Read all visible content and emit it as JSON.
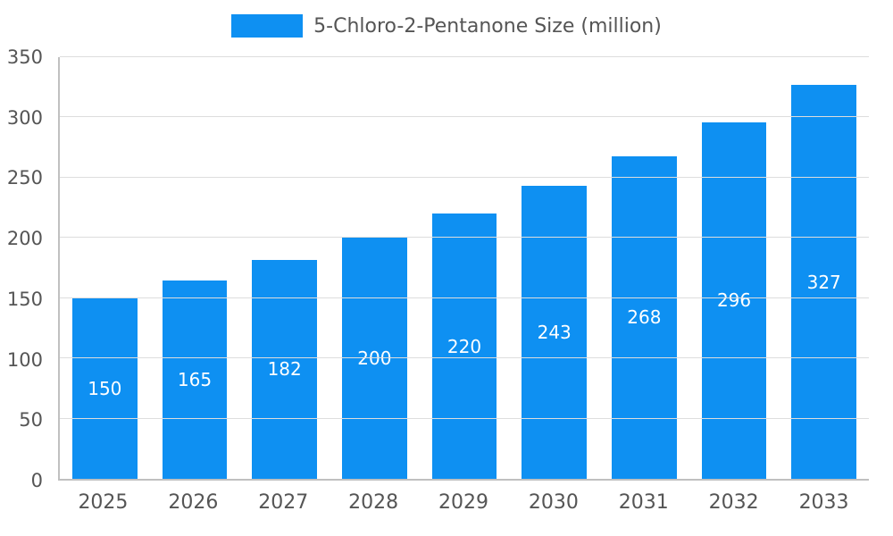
{
  "colors": {
    "bar": "#0e90f2",
    "axis_text": "#555555",
    "grid": "#dddddd",
    "axis_line": "#c0c0c0",
    "bar_label": "#ffffff"
  },
  "chart_data": {
    "type": "bar",
    "title": "5-Chloro-2-Pentanone Size (million)",
    "categories": [
      "2025",
      "2026",
      "2027",
      "2028",
      "2029",
      "2030",
      "2031",
      "2032",
      "2033"
    ],
    "values": [
      150,
      165,
      182,
      200,
      220,
      243,
      268,
      296,
      327
    ],
    "xlabel": "",
    "ylabel": "",
    "ylim": [
      0,
      350
    ],
    "ytick_step": 50,
    "grid": true,
    "legend_position": "top-center",
    "bar_label_position": "center-inside"
  }
}
